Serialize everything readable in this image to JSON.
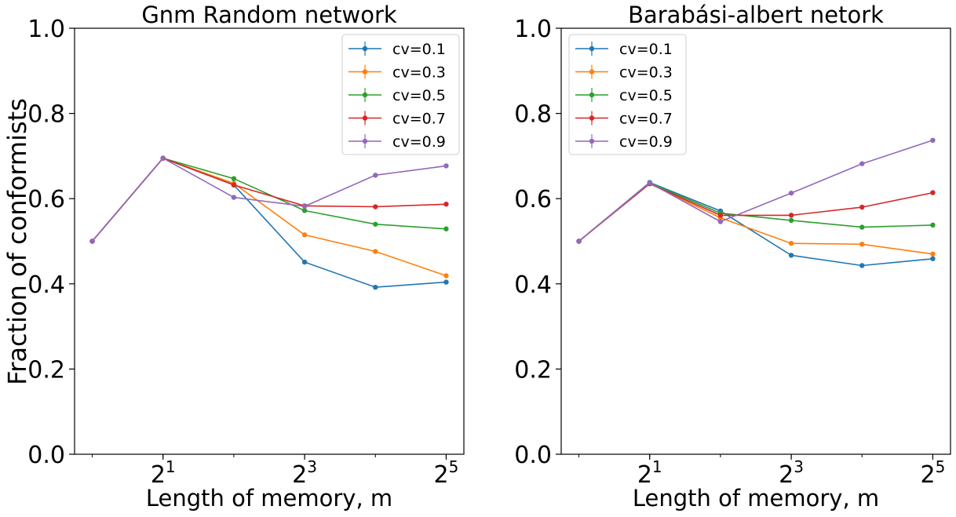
{
  "figure": {
    "ylabel": "Fraction of conformists"
  },
  "chart_data": [
    {
      "type": "line",
      "title": "Gnm Random network",
      "xlabel": "Length of memory, m",
      "ylabel": "Fraction of conformists",
      "x_scale": "log2",
      "x": [
        1,
        2,
        4,
        8,
        16,
        32
      ],
      "xticks": [
        {
          "value": 2,
          "base": "2",
          "exp": "1"
        },
        {
          "value": 8,
          "base": "2",
          "exp": "3"
        },
        {
          "value": 32,
          "base": "2",
          "exp": "5"
        }
      ],
      "ylim": [
        0.0,
        1.0
      ],
      "yticks": [
        "0.0",
        "0.2",
        "0.4",
        "0.6",
        "0.8",
        "1.0"
      ],
      "grid": false,
      "legend_loc": "upper right",
      "series": [
        {
          "name": "cv=0.1",
          "color": "#1f77b4",
          "values": [
            0.5,
            0.695,
            0.632,
            0.451,
            0.392,
            0.404
          ]
        },
        {
          "name": "cv=0.3",
          "color": "#ff7f0e",
          "values": [
            0.5,
            0.695,
            0.636,
            0.515,
            0.476,
            0.419
          ]
        },
        {
          "name": "cv=0.5",
          "color": "#2ca02c",
          "values": [
            0.5,
            0.695,
            0.647,
            0.572,
            0.54,
            0.529
          ]
        },
        {
          "name": "cv=0.7",
          "color": "#d62728",
          "values": [
            0.5,
            0.695,
            0.632,
            0.583,
            0.581,
            0.587
          ]
        },
        {
          "name": "cv=0.9",
          "color": "#9467bd",
          "values": [
            0.5,
            0.695,
            0.603,
            0.582,
            0.655,
            0.677
          ]
        }
      ]
    },
    {
      "type": "line",
      "title": "Barabási-albert netork",
      "xlabel": "Length of memory, m",
      "ylabel": "",
      "x_scale": "log2",
      "x": [
        1,
        2,
        4,
        8,
        16,
        32
      ],
      "xticks": [
        {
          "value": 2,
          "base": "2",
          "exp": "1"
        },
        {
          "value": 8,
          "base": "2",
          "exp": "3"
        },
        {
          "value": 32,
          "base": "2",
          "exp": "5"
        }
      ],
      "ylim": [
        0.0,
        1.0
      ],
      "yticks": [
        "0.0",
        "0.2",
        "0.4",
        "0.6",
        "0.8",
        "1.0"
      ],
      "grid": false,
      "legend_loc": "upper left",
      "series": [
        {
          "name": "cv=0.1",
          "color": "#1f77b4",
          "values": [
            0.5,
            0.638,
            0.571,
            0.467,
            0.443,
            0.459
          ]
        },
        {
          "name": "cv=0.3",
          "color": "#ff7f0e",
          "values": [
            0.5,
            0.635,
            0.555,
            0.495,
            0.493,
            0.47
          ]
        },
        {
          "name": "cv=0.5",
          "color": "#2ca02c",
          "values": [
            0.5,
            0.637,
            0.566,
            0.549,
            0.533,
            0.538
          ]
        },
        {
          "name": "cv=0.7",
          "color": "#d62728",
          "values": [
            0.5,
            0.635,
            0.561,
            0.561,
            0.58,
            0.614
          ]
        },
        {
          "name": "cv=0.9",
          "color": "#9467bd",
          "values": [
            0.5,
            0.637,
            0.546,
            0.613,
            0.682,
            0.737
          ]
        }
      ]
    }
  ]
}
